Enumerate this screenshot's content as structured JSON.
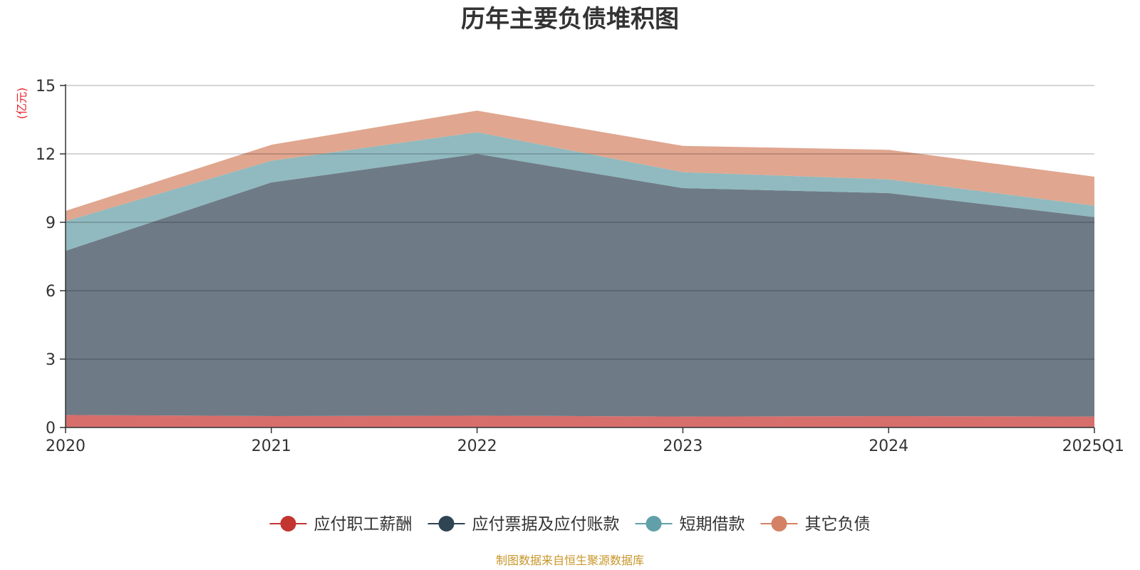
{
  "chart_data": {
    "type": "area",
    "stacked": true,
    "title": "历年主要负债堆积图",
    "unit_label": "(亿元)",
    "categories": [
      "2020",
      "2021",
      "2022",
      "2023",
      "2024",
      "2025Q1"
    ],
    "ylim": [
      0,
      15
    ],
    "yticks": [
      "0",
      "3",
      "6",
      "9",
      "12",
      "15"
    ],
    "grid": true,
    "legend_position": "bottom",
    "series": [
      {
        "name": "应付职工薪酬",
        "color": "#c23531",
        "fill": "#d66e6c",
        "values": [
          0.55,
          0.5,
          0.52,
          0.48,
          0.5,
          0.48
        ]
      },
      {
        "name": "应付票据及应付账款",
        "color": "#2f4554",
        "fill": "#6e7b86",
        "values": [
          7.2,
          10.25,
          11.48,
          10.02,
          9.78,
          8.75
        ]
      },
      {
        "name": "短期借款",
        "color": "#61a0a8",
        "fill": "#90babf",
        "values": [
          1.3,
          0.95,
          0.95,
          0.7,
          0.6,
          0.5
        ]
      },
      {
        "name": "其它负债",
        "color": "#d48265",
        "fill": "#e0a68f",
        "values": [
          0.45,
          0.7,
          0.95,
          1.15,
          1.3,
          1.27
        ]
      }
    ],
    "source_note": "制图数据来自恒生聚源数据库"
  }
}
